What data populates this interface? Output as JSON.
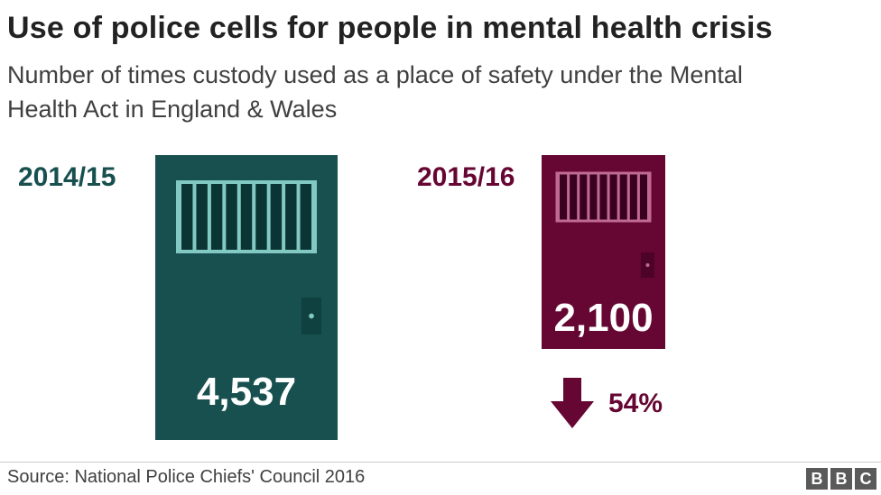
{
  "chart_data": {
    "type": "bar",
    "title": "Use of police cells for people in mental health crisis",
    "subtitle": "Number of times custody used as a place of safety under the Mental Health Act in England & Wales",
    "categories": [
      "2014/15",
      "2015/16"
    ],
    "values": [
      4537,
      2100
    ],
    "value_labels": [
      "4,537",
      "2,100"
    ],
    "colors": [
      "#18504f",
      "#660633"
    ],
    "change": {
      "direction": "down",
      "label": "54%",
      "icon": "down-arrow-icon"
    },
    "source": "Source: National Police Chiefs' Council 2016",
    "logo": [
      "B",
      "B",
      "C"
    ]
  }
}
